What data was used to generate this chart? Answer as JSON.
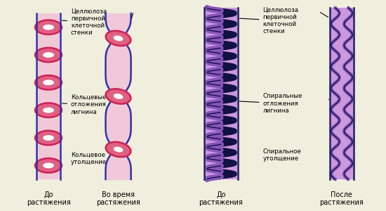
{
  "bg_color": "#f0eedc",
  "pink_fill": "#f0c8d8",
  "pink_border": "#3333aa",
  "pink_ring_fill": "#e06080",
  "pink_ring_border": "#cc2255",
  "purple_fill": "#cc99dd",
  "purple_border": "#222266",
  "purple_coil_fill": "#8855bb",
  "purple_coil_border": "#111144",
  "text_color": "#000000",
  "label1_top": "Целлюлоза\nпервичной\nклеточной\nстенки",
  "label1_mid": "Кольцевые\nотложения\nлигнина",
  "label1_bot": "Кольцевое\nутолщение",
  "label2_top": "Целлюлоза\nпервичной\nклеточной\nстенки",
  "label2_mid": "Спиральные\nотложения\nлигнина",
  "label2_bot": "Спиральное\nутолщение",
  "cap1a": "До\nрастяжения",
  "cap1b": "Во время\nрастяжения",
  "cap2a": "До\nрастяжения",
  "cap2b": "После\nрастяжения"
}
